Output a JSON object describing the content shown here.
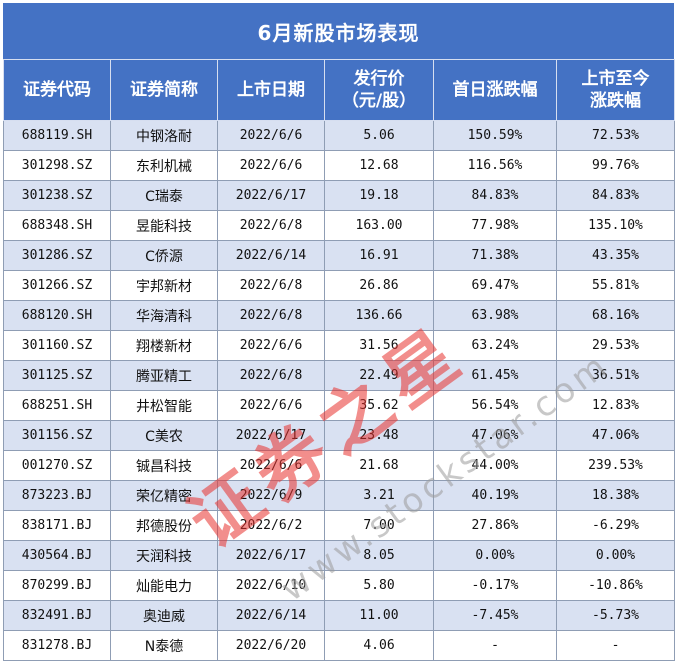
{
  "title": "6月新股市场表现",
  "columns": [
    "证券代码",
    "证券简称",
    "上市日期",
    "发行价\n（元/股）",
    "首日涨跌幅",
    "上市至今\n涨跌幅"
  ],
  "rows": [
    [
      "688119.SH",
      "中钢洛耐",
      "2022/6/6",
      "5.06",
      "150.59%",
      "72.53%"
    ],
    [
      "301298.SZ",
      "东利机械",
      "2022/6/6",
      "12.68",
      "116.56%",
      "99.76%"
    ],
    [
      "301238.SZ",
      "C瑞泰",
      "2022/6/17",
      "19.18",
      "84.83%",
      "84.83%"
    ],
    [
      "688348.SH",
      "昱能科技",
      "2022/6/8",
      "163.00",
      "77.98%",
      "135.10%"
    ],
    [
      "301286.SZ",
      "C侨源",
      "2022/6/14",
      "16.91",
      "71.38%",
      "43.35%"
    ],
    [
      "301266.SZ",
      "宇邦新材",
      "2022/6/8",
      "26.86",
      "69.47%",
      "55.81%"
    ],
    [
      "688120.SH",
      "华海清科",
      "2022/6/8",
      "136.66",
      "63.98%",
      "68.16%"
    ],
    [
      "301160.SZ",
      "翔楼新材",
      "2022/6/6",
      "31.56",
      "63.24%",
      "29.53%"
    ],
    [
      "301125.SZ",
      "腾亚精工",
      "2022/6/8",
      "22.49",
      "61.45%",
      "36.51%"
    ],
    [
      "688251.SH",
      "井松智能",
      "2022/6/6",
      "35.62",
      "56.54%",
      "12.83%"
    ],
    [
      "301156.SZ",
      "C美农",
      "2022/6/17",
      "23.48",
      "47.06%",
      "47.06%"
    ],
    [
      "001270.SZ",
      "铖昌科技",
      "2022/6/6",
      "21.68",
      "44.00%",
      "239.53%"
    ],
    [
      "873223.BJ",
      "荣亿精密",
      "2022/6/9",
      "3.21",
      "40.19%",
      "18.38%"
    ],
    [
      "838171.BJ",
      "邦德股份",
      "2022/6/2",
      "7.00",
      "27.86%",
      "-6.29%"
    ],
    [
      "430564.BJ",
      "天润科技",
      "2022/6/17",
      "8.05",
      "0.00%",
      "0.00%"
    ],
    [
      "870299.BJ",
      "灿能电力",
      "2022/6/10",
      "5.80",
      "-0.17%",
      "-10.86%"
    ],
    [
      "832491.BJ",
      "奥迪威",
      "2022/6/14",
      "11.00",
      "-7.45%",
      "-5.73%"
    ],
    [
      "831278.BJ",
      "N泰德",
      "2022/6/20",
      "4.06",
      "-",
      "-"
    ]
  ],
  "watermark": {
    "brand": "证券之星",
    "url": "www.stockstar.com"
  },
  "colors": {
    "header_bg": "#4472c4",
    "header_text": "#ffffff",
    "band_bg": "#d9e1f2",
    "watermark_red": "#e8322d",
    "watermark_gray": "#b8b8b8"
  }
}
